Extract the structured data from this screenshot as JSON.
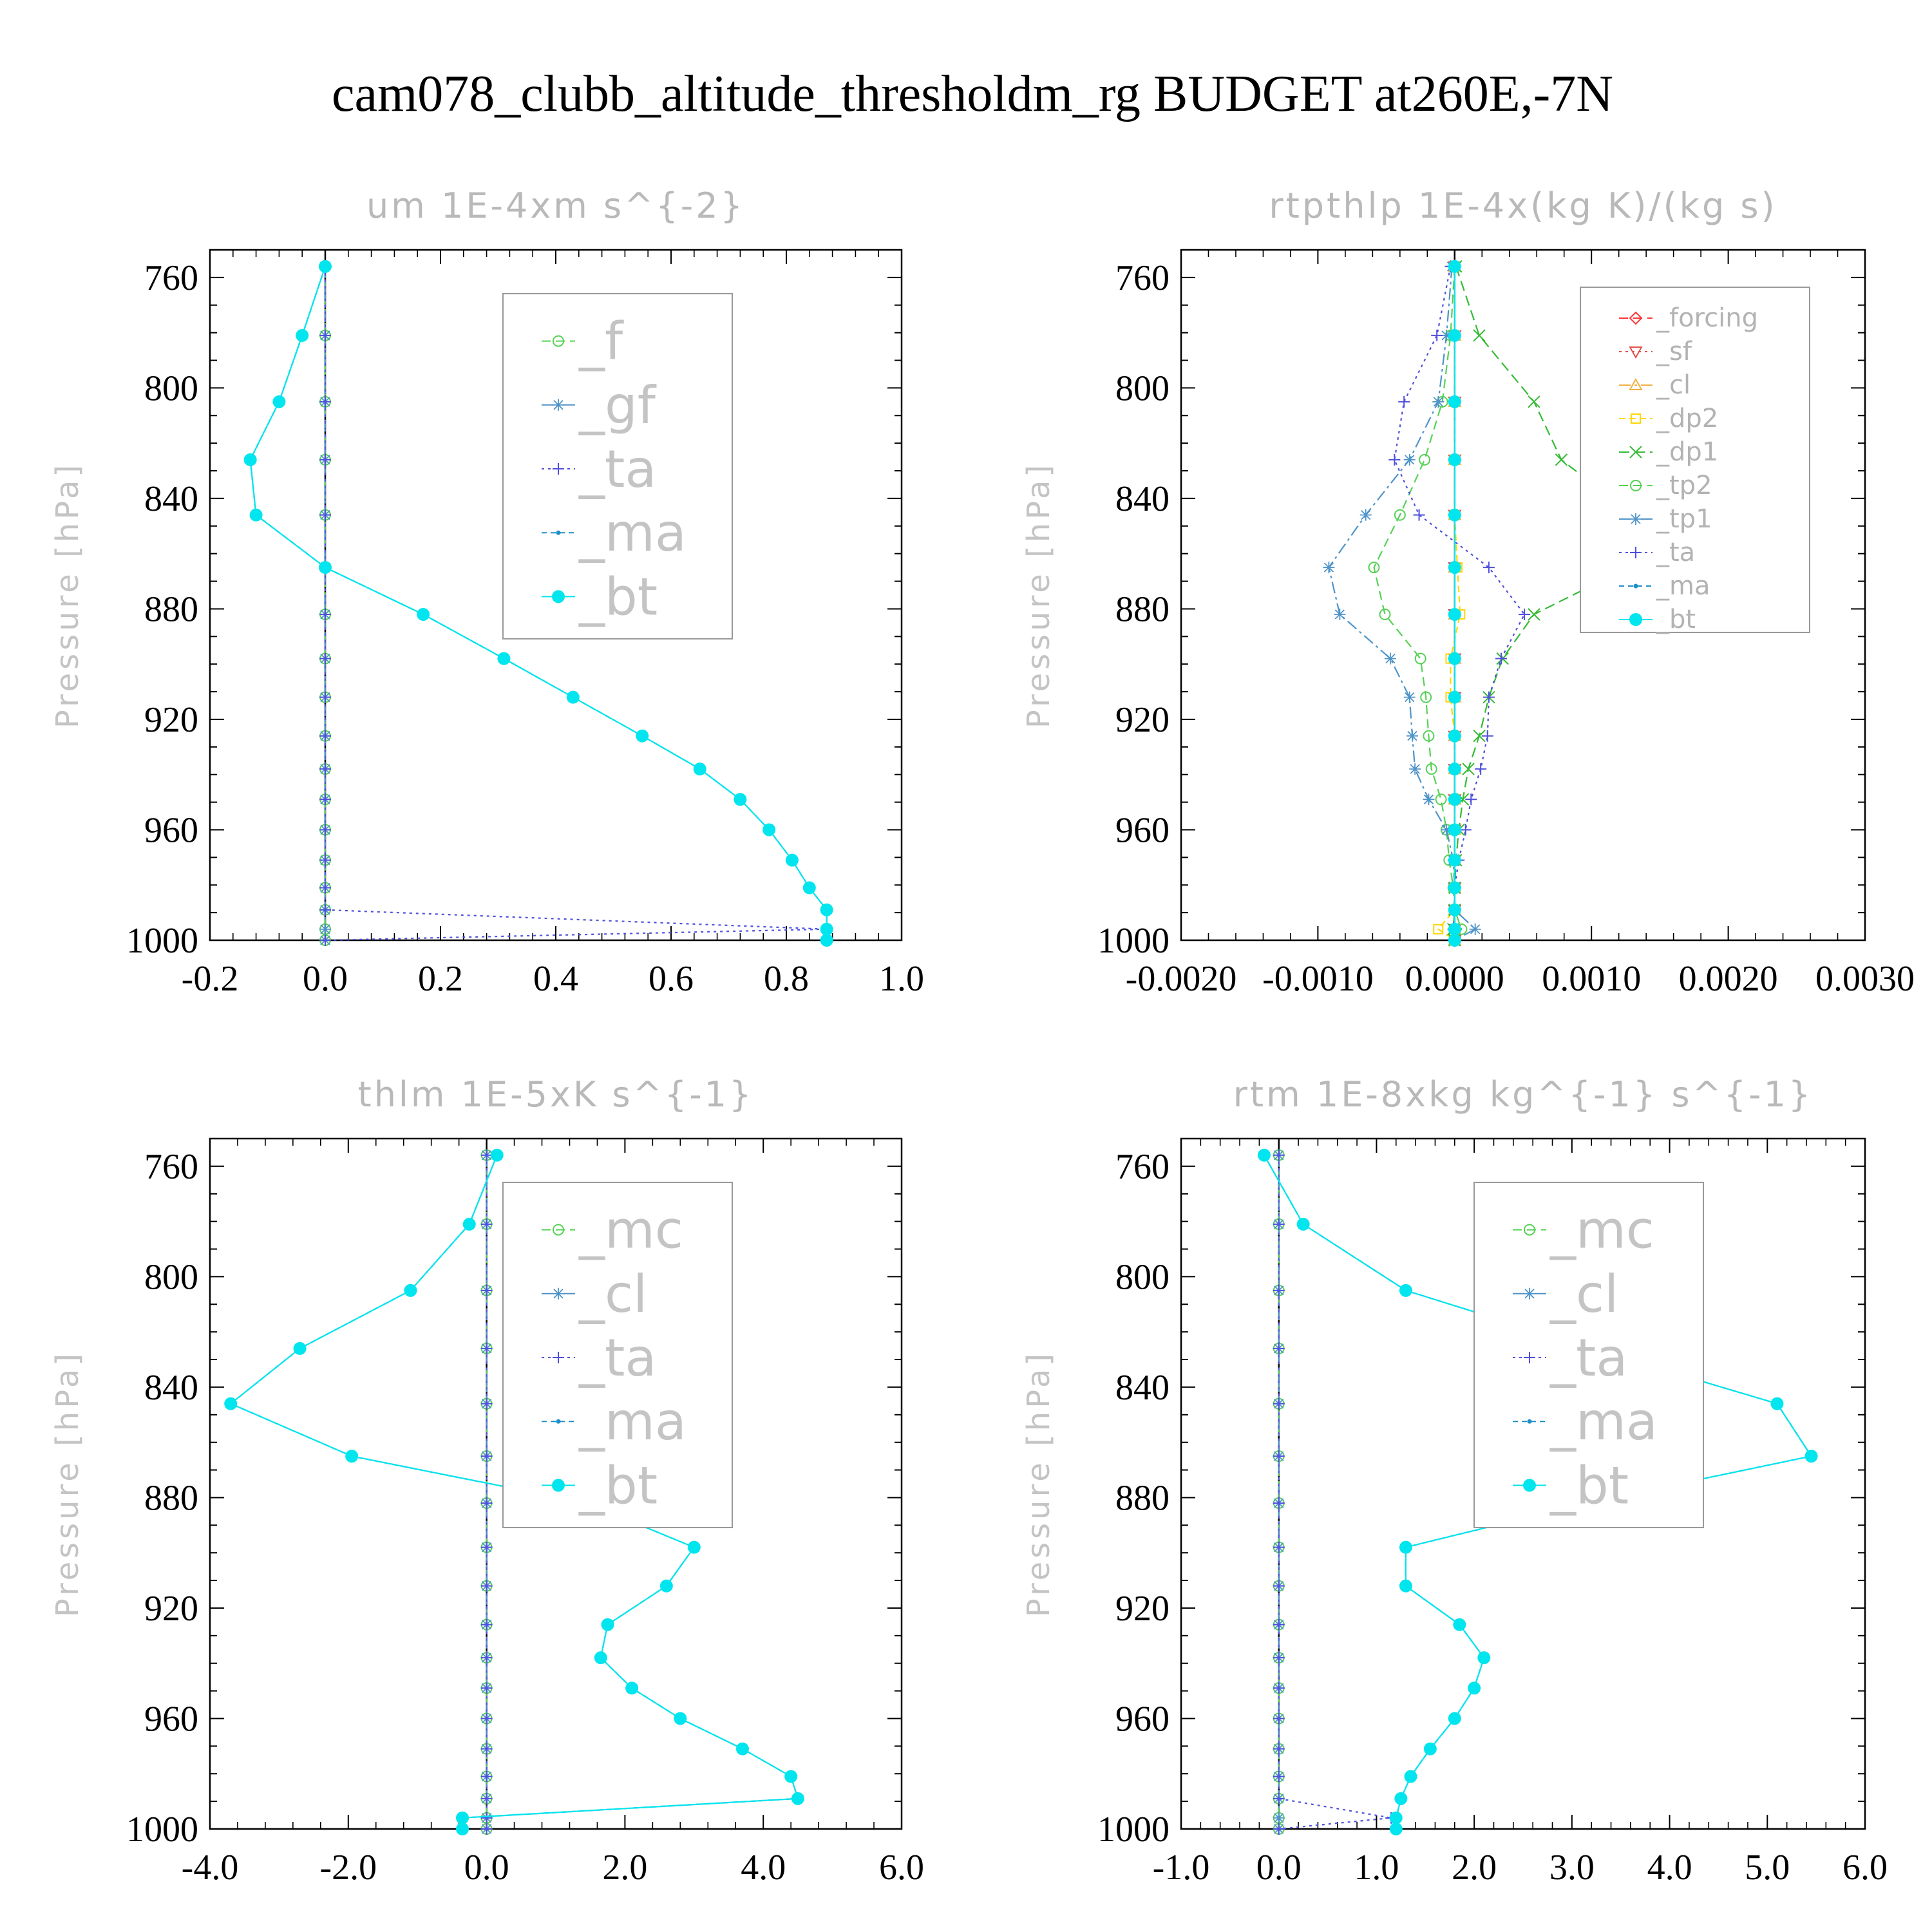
{
  "title": "cam078_clubb_altitude_thresholdm_rg  BUDGET at260E,-7N",
  "chart_data": [
    {
      "type": "line",
      "title": "um   1E-4xm s^{-2}",
      "ylabel": "Pressure [hPa]",
      "xlim": [
        -0.2,
        1.0
      ],
      "ylim": [
        750,
        1000
      ],
      "xticks": [
        "-0.2",
        "0.0",
        "0.2",
        "0.4",
        "0.6",
        "0.8",
        "1.0"
      ],
      "xtick_values": [
        -0.2,
        0.0,
        0.2,
        0.4,
        0.6,
        0.8,
        1.0
      ],
      "yticks": [
        "760",
        "800",
        "840",
        "880",
        "920",
        "960",
        "1000"
      ],
      "ytick_values": [
        760,
        800,
        840,
        880,
        920,
        960,
        1000
      ],
      "legend_position": "top-right",
      "legend_size": "large",
      "y": [
        756,
        781,
        805,
        826,
        846,
        865,
        882,
        898,
        912,
        926,
        938,
        949,
        960,
        971,
        981,
        989,
        996,
        1000
      ],
      "series": [
        {
          "name": "_f",
          "color": "#55d255",
          "dash": "14,8",
          "marker": "circle",
          "values": [
            0,
            0,
            0,
            0,
            0,
            0,
            0,
            0,
            0,
            0,
            0,
            0,
            0,
            0,
            0,
            0,
            0,
            0
          ]
        },
        {
          "name": "_gf",
          "color": "#4f94c9",
          "dash": "18,6,4,6",
          "marker": "star",
          "values": [
            0,
            0,
            0,
            0,
            0,
            0,
            0,
            0,
            0,
            0,
            0,
            0,
            0,
            0,
            0,
            0,
            0,
            0
          ]
        },
        {
          "name": "_ta",
          "color": "#5050dd",
          "dash": "4,6",
          "marker": "plus",
          "values": [
            0,
            0,
            0,
            0,
            0,
            0,
            0,
            0,
            0,
            0,
            0,
            0,
            0,
            0,
            0,
            0,
            0.87,
            0
          ]
        },
        {
          "name": "_ma",
          "color": "#1d8fc8",
          "dash": "8,6",
          "marker": "dot",
          "values": [
            0,
            -0.04,
            -0.08,
            -0.13,
            -0.12,
            0,
            0.17,
            0.31,
            0.43,
            0.55,
            0.65,
            0.72,
            0.77,
            0.81,
            0.84,
            0.87,
            0.87,
            0.87
          ]
        },
        {
          "name": "_bt",
          "color": "#00e5ee",
          "dash": "none",
          "marker": "bigdot",
          "values": [
            0,
            -0.04,
            -0.08,
            -0.13,
            -0.12,
            0,
            0.17,
            0.31,
            0.43,
            0.55,
            0.65,
            0.72,
            0.77,
            0.81,
            0.84,
            0.87,
            0.87,
            0.87
          ]
        }
      ]
    },
    {
      "type": "line",
      "title": "rtpthlp   1E-4x(kg K)/(kg s)",
      "ylabel": "Pressure [hPa]",
      "xlim": [
        -0.002,
        0.003
      ],
      "ylim": [
        750,
        1000
      ],
      "xticks": [
        "-0.0020",
        "-0.0010",
        "0.0000",
        "0.0010",
        "0.0020",
        "0.0030"
      ],
      "xtick_values": [
        -0.002,
        -0.001,
        0.0,
        0.001,
        0.002,
        0.003
      ],
      "yticks": [
        "760",
        "800",
        "840",
        "880",
        "920",
        "960",
        "1000"
      ],
      "ytick_values": [
        760,
        800,
        840,
        880,
        920,
        960,
        1000
      ],
      "legend_position": "top-right",
      "legend_size": "small",
      "y": [
        756,
        781,
        805,
        826,
        846,
        865,
        882,
        898,
        912,
        926,
        938,
        949,
        960,
        971,
        981,
        989,
        996,
        1000
      ],
      "series": [
        {
          "name": "_forcing",
          "color": "#ff3333",
          "dash": "14,8",
          "marker": "diamond",
          "values": [
            0,
            0,
            0,
            0,
            0,
            0,
            0,
            0,
            0,
            0,
            0,
            0,
            0,
            0,
            0,
            0,
            0,
            0
          ]
        },
        {
          "name": "_sf",
          "color": "#e0504c",
          "dash": "4,6",
          "marker": "triangle-down",
          "values": [
            0,
            0,
            0,
            0,
            0,
            0,
            0,
            0,
            0,
            0,
            0,
            0,
            0,
            0,
            0,
            0,
            0,
            0
          ]
        },
        {
          "name": "_cl",
          "color": "#f0b040",
          "dash": "18,6,4,6",
          "marker": "triangle-up",
          "values": [
            0,
            0,
            0,
            0,
            0,
            0,
            0,
            0,
            0,
            0,
            0,
            0,
            0,
            0,
            0,
            0,
            0,
            0
          ]
        },
        {
          "name": "_dp2",
          "color": "#ffd700",
          "dash": "10,6",
          "marker": "square",
          "values": [
            0,
            0,
            0,
            0,
            0,
            2e-05,
            4e-05,
            -3e-05,
            -3e-05,
            0,
            0,
            0,
            0,
            0,
            0,
            0,
            -0.00012,
            0
          ]
        },
        {
          "name": "_dp1",
          "color": "#33bb33",
          "dash": "16,8",
          "marker": "cross",
          "values": [
            1e-05,
            0.00018,
            0.00058,
            0.00078,
            0.0013,
            0.00127,
            0.00058,
            0.00035,
            0.00025,
            0.00018,
            0.0001,
            6e-05,
            3e-05,
            1e-05,
            0,
            0,
            -1e-05,
            0
          ]
        },
        {
          "name": "_tp2",
          "color": "#55d255",
          "dash": "14,8",
          "marker": "circle",
          "values": [
            0,
            -3e-05,
            -9e-05,
            -0.00022,
            -0.0004,
            -0.00059,
            -0.00051,
            -0.00025,
            -0.00021,
            -0.00019,
            -0.00017,
            -0.0001,
            -6e-05,
            -4e-05,
            -1e-05,
            0,
            5e-05,
            0
          ]
        },
        {
          "name": "_tp1",
          "color": "#4f94c9",
          "dash": "18,6,4,6",
          "marker": "star",
          "values": [
            -2e-05,
            -6e-05,
            -0.00012,
            -0.00033,
            -0.00065,
            -0.00092,
            -0.00084,
            -0.00047,
            -0.00033,
            -0.00031,
            -0.00029,
            -0.00019,
            -6e-05,
            -1e-05,
            0,
            0,
            0.00015,
            0
          ]
        },
        {
          "name": "_ta",
          "color": "#5050dd",
          "dash": "4,6",
          "marker": "plus",
          "values": [
            -3e-05,
            -0.00013,
            -0.00037,
            -0.00044,
            -0.00026,
            0.00025,
            0.00051,
            0.00034,
            0.00025,
            0.00024,
            0.00019,
            0.00012,
            8e-05,
            3e-05,
            0,
            0,
            -1e-05,
            0
          ]
        },
        {
          "name": "_ma",
          "color": "#1d8fc8",
          "dash": "8,6",
          "marker": "dot",
          "values": [
            0,
            0,
            0,
            0,
            0,
            0,
            0,
            0,
            0,
            0,
            0,
            0,
            0,
            0,
            0,
            0,
            0,
            0
          ]
        },
        {
          "name": "_bt",
          "color": "#00e5ee",
          "dash": "none",
          "marker": "bigdot",
          "values": [
            0,
            0,
            0,
            0,
            0,
            0,
            0,
            0,
            0,
            0,
            0,
            0,
            0,
            0,
            0,
            0,
            0,
            0
          ]
        }
      ]
    },
    {
      "type": "line",
      "title": "thlm   1E-5xK s^{-1}",
      "ylabel": "Pressure [hPa]",
      "xlim": [
        -4.0,
        6.0
      ],
      "ylim": [
        750,
        1000
      ],
      "xticks": [
        "-4.0",
        "-2.0",
        "0.0",
        "2.0",
        "4.0",
        "6.0"
      ],
      "xtick_values": [
        -4.0,
        -2.0,
        0.0,
        2.0,
        4.0,
        6.0
      ],
      "yticks": [
        "760",
        "800",
        "840",
        "880",
        "920",
        "960",
        "1000"
      ],
      "ytick_values": [
        760,
        800,
        840,
        880,
        920,
        960,
        1000
      ],
      "legend_position": "top-right",
      "legend_size": "large",
      "y": [
        756,
        781,
        805,
        826,
        846,
        865,
        882,
        898,
        912,
        926,
        938,
        949,
        960,
        971,
        981,
        989,
        996,
        1000
      ],
      "series": [
        {
          "name": "_mc",
          "color": "#55d255",
          "dash": "14,8",
          "marker": "circle",
          "values": [
            0,
            0,
            0,
            0,
            0,
            0,
            0,
            0,
            0,
            0,
            0,
            0,
            0,
            0,
            0,
            0,
            0,
            0
          ]
        },
        {
          "name": "_cl",
          "color": "#4f94c9",
          "dash": "18,6,4,6",
          "marker": "star",
          "values": [
            0,
            0,
            0,
            0,
            0,
            0,
            0,
            0,
            0,
            0,
            0,
            0,
            0,
            0,
            0,
            0,
            0,
            0
          ]
        },
        {
          "name": "_ta",
          "color": "#5050dd",
          "dash": "4,6",
          "marker": "plus",
          "values": [
            0,
            0,
            0,
            0,
            0,
            0,
            0,
            0,
            0,
            0,
            0,
            0,
            0,
            0,
            0,
            0,
            0,
            0
          ]
        },
        {
          "name": "_ma",
          "color": "#1d8fc8",
          "dash": "8,6",
          "marker": "dot",
          "values": [
            0.15,
            -0.25,
            -1.1,
            -2.7,
            -3.7,
            -1.95,
            1.45,
            3.0,
            2.6,
            1.75,
            1.65,
            2.1,
            2.8,
            3.7,
            4.4,
            4.5,
            -0.35,
            -0.35
          ]
        },
        {
          "name": "_bt",
          "color": "#00e5ee",
          "dash": "none",
          "marker": "bigdot",
          "values": [
            0.15,
            -0.25,
            -1.1,
            -2.7,
            -3.7,
            -1.95,
            1.45,
            3.0,
            2.6,
            1.75,
            1.65,
            2.1,
            2.8,
            3.7,
            4.4,
            4.5,
            -0.35,
            -0.35
          ]
        }
      ]
    },
    {
      "type": "line",
      "title": "rtm   1E-8xkg kg^{-1} s^{-1}",
      "ylabel": "Pressure [hPa]",
      "xlim": [
        -1.0,
        6.0
      ],
      "ylim": [
        750,
        1000
      ],
      "xticks": [
        "-1.0",
        "0.0",
        "1.0",
        "2.0",
        "3.0",
        "4.0",
        "5.0",
        "6.0"
      ],
      "xtick_values": [
        -1.0,
        0.0,
        1.0,
        2.0,
        3.0,
        4.0,
        5.0,
        6.0
      ],
      "yticks": [
        "760",
        "800",
        "840",
        "880",
        "920",
        "960",
        "1000"
      ],
      "ytick_values": [
        760,
        800,
        840,
        880,
        920,
        960,
        1000
      ],
      "legend_position": "top-right",
      "legend_size": "large",
      "y": [
        756,
        781,
        805,
        826,
        846,
        865,
        882,
        898,
        912,
        926,
        938,
        949,
        960,
        971,
        981,
        989,
        996,
        1000
      ],
      "series": [
        {
          "name": "_mc",
          "color": "#55d255",
          "dash": "14,8",
          "marker": "circle",
          "values": [
            0,
            0,
            0,
            0,
            0,
            0,
            0,
            0,
            0,
            0,
            0,
            0,
            0,
            0,
            0,
            0,
            0,
            0
          ]
        },
        {
          "name": "_cl",
          "color": "#4f94c9",
          "dash": "18,6,4,6",
          "marker": "star",
          "values": [
            0,
            0,
            0,
            0,
            0,
            0,
            0,
            0,
            0,
            0,
            0,
            0,
            0,
            0,
            0,
            0,
            0,
            0
          ]
        },
        {
          "name": "_ta",
          "color": "#5050dd",
          "dash": "4,6",
          "marker": "plus",
          "values": [
            0,
            0,
            0,
            0,
            0,
            0,
            0,
            0,
            0,
            0,
            0,
            0,
            0,
            0,
            0,
            0,
            1.15,
            0
          ]
        },
        {
          "name": "_ma",
          "color": "#1d8fc8",
          "dash": "8,6",
          "marker": "dot",
          "values": [
            -0.15,
            0.25,
            1.3,
            3.2,
            5.1,
            5.45,
            3.15,
            1.3,
            1.3,
            1.85,
            2.1,
            2.0,
            1.8,
            1.55,
            1.35,
            1.25,
            1.2,
            1.2
          ]
        },
        {
          "name": "_bt",
          "color": "#00e5ee",
          "dash": "none",
          "marker": "bigdot",
          "values": [
            -0.15,
            0.25,
            1.3,
            3.2,
            5.1,
            5.45,
            3.15,
            1.3,
            1.3,
            1.85,
            2.1,
            2.0,
            1.8,
            1.55,
            1.35,
            1.25,
            1.2,
            1.2
          ]
        }
      ]
    }
  ]
}
